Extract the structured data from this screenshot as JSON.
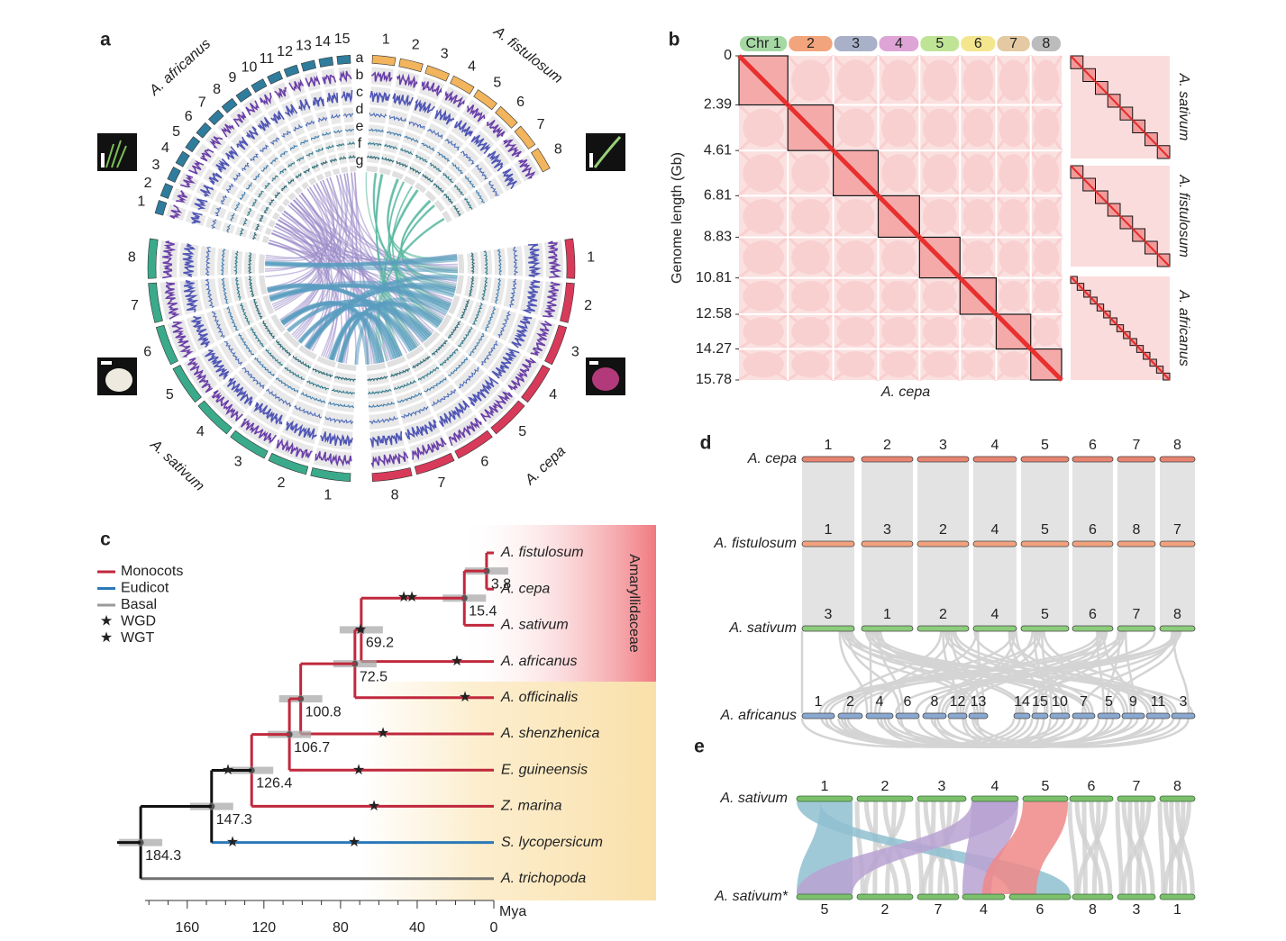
{
  "panel_a": {
    "label": "a",
    "tracks": [
      "a",
      "b",
      "c",
      "d",
      "e",
      "f",
      "g"
    ],
    "species": [
      {
        "name": "A. africanus",
        "color": "#2f7c9c",
        "chromosomes": [
          "1",
          "2",
          "3",
          "4",
          "5",
          "6",
          "7",
          "8",
          "9",
          "10",
          "11",
          "12",
          "13",
          "14",
          "15"
        ]
      },
      {
        "name": "A. fistulosum",
        "color": "#f2b45c",
        "chromosomes": [
          "1",
          "2",
          "3",
          "4",
          "5",
          "6",
          "7",
          "8"
        ]
      },
      {
        "name": "A. cepa",
        "color": "#d83a5a",
        "chromosomes": [
          "1",
          "2",
          "3",
          "4",
          "5",
          "6",
          "7",
          "8"
        ]
      },
      {
        "name": "A. sativum",
        "color": "#3aaa8a",
        "chromosomes": [
          "1",
          "2",
          "3",
          "4",
          "5",
          "6",
          "7",
          "8"
        ]
      }
    ]
  },
  "panel_b": {
    "label": "b",
    "chromosomes": [
      {
        "name": "Chr 1",
        "color": "#a6d8a4"
      },
      {
        "name": "2",
        "color": "#f2a47c"
      },
      {
        "name": "3",
        "color": "#a9b1c9"
      },
      {
        "name": "4",
        "color": "#dfa4d6"
      },
      {
        "name": "5",
        "color": "#bfe495"
      },
      {
        "name": "6",
        "color": "#f3e68e"
      },
      {
        "name": "7",
        "color": "#e4c9a2"
      },
      {
        "name": "8",
        "color": "#bcbcbc"
      }
    ],
    "y_axis_label": "Genome length (Gb)",
    "yticks": [
      0,
      2.39,
      4.61,
      6.81,
      8.83,
      10.81,
      12.58,
      14.27,
      15.78
    ],
    "x_axis_label": "A. cepa",
    "insets": [
      "A. sativum",
      "A. fistulosum",
      "A. africanus"
    ]
  },
  "panel_c": {
    "label": "c",
    "legend": [
      {
        "label": "Monocots",
        "color": "#c0283c"
      },
      {
        "label": "Eudicot",
        "color": "#2a78b8"
      },
      {
        "label": "Basal",
        "color": "#9a9a9a"
      },
      {
        "label": "WGD",
        "color": "#f08a30"
      },
      {
        "label": "WGT",
        "color": "#6a2a8a"
      }
    ],
    "group_label": "Amaryllidaceae",
    "tips": [
      "A. fistulosum",
      "A. cepa",
      "A. sativum",
      "A. africanus",
      "A. officinalis",
      "A. shenzhenica",
      "E. guineensis",
      "Z. marina",
      "S. lycopersicum",
      "A. trichopoda"
    ],
    "node_ages": [
      3.8,
      15.4,
      69.2,
      72.5,
      100.8,
      106.7,
      126.4,
      147.3,
      184.3
    ],
    "xlim": [
      182,
      0
    ],
    "xticks": [
      160,
      120,
      80,
      40,
      0
    ],
    "x_axis_label": "Mya"
  },
  "panel_d": {
    "label": "d",
    "rows": [
      {
        "name": "A. cepa",
        "color": "#d9534f",
        "bar": "#e8836f",
        "chromosomes": [
          "1",
          "2",
          "3",
          "4",
          "5",
          "6",
          "7",
          "8"
        ]
      },
      {
        "name": "A. fistulosum",
        "color": "#e0603e",
        "bar": "#f2a27e",
        "chromosomes": [
          "1",
          "3",
          "2",
          "4",
          "5",
          "6",
          "8",
          "7"
        ]
      },
      {
        "name": "A. sativum",
        "color": "#4a9a4a",
        "bar": "#8ccc7c",
        "chromosomes": [
          "3",
          "1",
          "2",
          "4",
          "5",
          "6",
          "7",
          "8"
        ]
      },
      {
        "name": "A. africanus",
        "color": "#3a5fa0",
        "bar": "#8aa8d0",
        "chromosomes": [
          "1",
          "2",
          "4",
          "6",
          "8",
          "12",
          "13",
          "14",
          "15",
          "10",
          "7",
          "5",
          "9",
          "11",
          "3"
        ]
      }
    ]
  },
  "panel_e": {
    "label": "e",
    "rows": [
      {
        "name": "A. sativum",
        "chromosomes": [
          "1",
          "2",
          "3",
          "4",
          "5",
          "6",
          "7",
          "8"
        ]
      },
      {
        "name": "A. sativum*",
        "chromosomes": [
          "5",
          "2",
          "7",
          "4",
          "6",
          "8",
          "3",
          "1"
        ]
      }
    ]
  }
}
